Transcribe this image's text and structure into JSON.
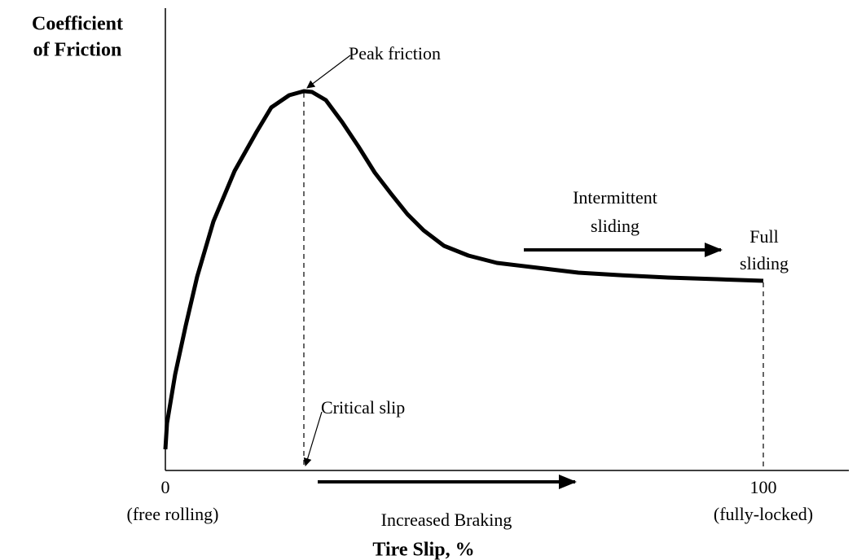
{
  "y_axis_label": [
    "Coefficient",
    "of Friction"
  ],
  "x_axis_label": "Tire Slip, %",
  "x_ticks": [
    {
      "value": "0",
      "caption": "(free rolling)"
    },
    {
      "value": "100",
      "caption": "(fully-locked)"
    }
  ],
  "annotations": {
    "peak": "Peak friction",
    "critical": "Critical slip",
    "intermittent": [
      "Intermittent",
      "sliding"
    ],
    "full": [
      "Full",
      "sliding"
    ],
    "braking": "Increased Braking"
  }
}
